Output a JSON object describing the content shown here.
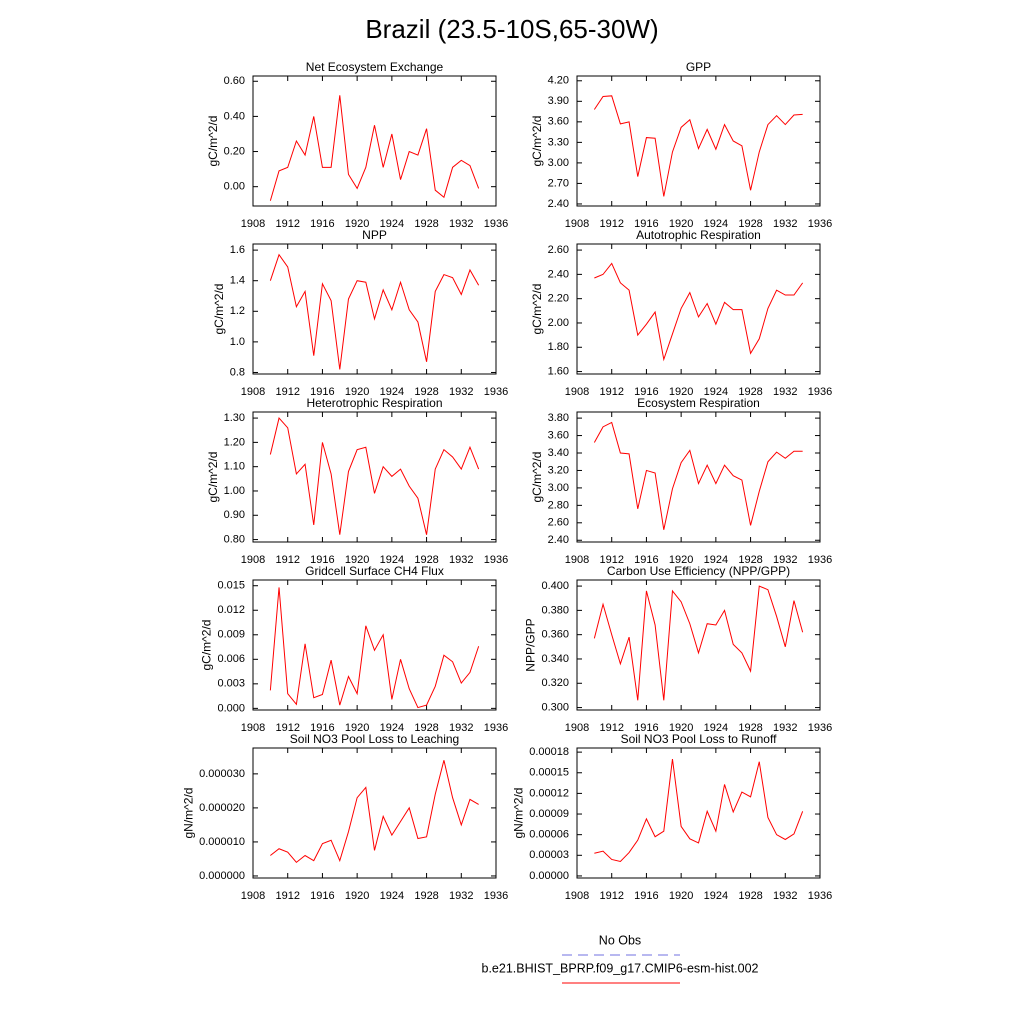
{
  "title": "Brazil (23.5-10S,65-30W)",
  "legend": [
    {
      "name": "No Obs",
      "color": "#7070e0",
      "dash": true
    },
    {
      "name": "b.e21.BHIST_BPRP.f09_g17.CMIP6-esm-hist.002",
      "color": "#ff0000",
      "dash": false
    }
  ],
  "chart_data": [
    {
      "type": "line",
      "title": "Net Ecosystem Exchange",
      "y_label": "gC/m^2/d",
      "x": [
        1910,
        1911,
        1912,
        1913,
        1914,
        1915,
        1916,
        1917,
        1918,
        1919,
        1920,
        1921,
        1922,
        1923,
        1924,
        1925,
        1926,
        1927,
        1928,
        1929,
        1930,
        1931,
        1932,
        1933,
        1934
      ],
      "xlim": [
        1908,
        1936
      ],
      "xticks": [
        1908,
        1912,
        1916,
        1920,
        1924,
        1928,
        1932,
        1936
      ],
      "ylim": [
        -0.11,
        0.63
      ],
      "yticks": [
        {
          "value": 0,
          "label": "0.00"
        },
        {
          "value": 0.2,
          "label": "0.20"
        },
        {
          "value": 0.4,
          "label": "0.40"
        },
        {
          "value": 0.6,
          "label": "0.60"
        }
      ],
      "series": [
        {
          "color": "#ff0000",
          "values": [
            -0.08,
            0.09,
            0.11,
            0.26,
            0.18,
            0.4,
            0.11,
            0.11,
            0.52,
            0.07,
            -0.01,
            0.11,
            0.35,
            0.11,
            0.3,
            0.04,
            0.2,
            0.18,
            0.33,
            -0.02,
            -0.06,
            0.11,
            0.15,
            0.12,
            -0.01
          ]
        }
      ]
    },
    {
      "type": "line",
      "title": "GPP",
      "y_label": "gC/m^2/d",
      "x": [
        1910,
        1911,
        1912,
        1913,
        1914,
        1915,
        1916,
        1917,
        1918,
        1919,
        1920,
        1921,
        1922,
        1923,
        1924,
        1925,
        1926,
        1927,
        1928,
        1929,
        1930,
        1931,
        1932,
        1933,
        1934
      ],
      "xlim": [
        1908,
        1936
      ],
      "xticks": [
        1908,
        1912,
        1916,
        1920,
        1924,
        1928,
        1932,
        1936
      ],
      "ylim": [
        2.37,
        4.27
      ],
      "yticks": [
        {
          "value": 2.4,
          "label": "2.40"
        },
        {
          "value": 2.7,
          "label": "2.70"
        },
        {
          "value": 3,
          "label": "3.00"
        },
        {
          "value": 3.3,
          "label": "3.30"
        },
        {
          "value": 3.6,
          "label": "3.60"
        },
        {
          "value": 3.9,
          "label": "3.90"
        },
        {
          "value": 4.2,
          "label": "4.20"
        }
      ],
      "series": [
        {
          "color": "#ff0000",
          "values": [
            3.78,
            3.97,
            3.98,
            3.57,
            3.6,
            2.8,
            3.37,
            3.36,
            2.51,
            3.16,
            3.52,
            3.63,
            3.21,
            3.49,
            3.2,
            3.56,
            3.32,
            3.25,
            2.6,
            3.16,
            3.56,
            3.69,
            3.56,
            3.7,
            3.71
          ]
        }
      ]
    },
    {
      "type": "line",
      "title": "NPP",
      "y_label": "gC/m^2/d",
      "x": [
        1910,
        1911,
        1912,
        1913,
        1914,
        1915,
        1916,
        1917,
        1918,
        1919,
        1920,
        1921,
        1922,
        1923,
        1924,
        1925,
        1926,
        1927,
        1928,
        1929,
        1930,
        1931,
        1932,
        1933,
        1934
      ],
      "xlim": [
        1908,
        1936
      ],
      "xticks": [
        1908,
        1912,
        1916,
        1920,
        1924,
        1928,
        1932,
        1936
      ],
      "ylim": [
        0.79,
        1.64
      ],
      "yticks": [
        0.8,
        {
          "value": 1,
          "label": "1.0"
        },
        1.2,
        1.4,
        1.6
      ],
      "series": [
        {
          "color": "#ff0000",
          "values": [
            1.4,
            1.57,
            1.49,
            1.23,
            1.33,
            0.91,
            1.38,
            1.27,
            0.82,
            1.28,
            1.4,
            1.39,
            1.15,
            1.34,
            1.21,
            1.39,
            1.21,
            1.13,
            0.87,
            1.33,
            1.44,
            1.42,
            1.31,
            1.47,
            1.37
          ]
        }
      ]
    },
    {
      "type": "line",
      "title": "Autotrophic Respiration",
      "y_label": "gC/m^2/d",
      "x": [
        1910,
        1911,
        1912,
        1913,
        1914,
        1915,
        1916,
        1917,
        1918,
        1919,
        1920,
        1921,
        1922,
        1923,
        1924,
        1925,
        1926,
        1927,
        1928,
        1929,
        1930,
        1931,
        1932,
        1933,
        1934
      ],
      "xlim": [
        1908,
        1936
      ],
      "xticks": [
        1908,
        1912,
        1916,
        1920,
        1924,
        1928,
        1932,
        1936
      ],
      "ylim": [
        1.58,
        2.65
      ],
      "yticks": [
        {
          "value": 1.6,
          "label": "1.60"
        },
        {
          "value": 1.8,
          "label": "1.80"
        },
        {
          "value": 2,
          "label": "2.00"
        },
        {
          "value": 2.2,
          "label": "2.20"
        },
        {
          "value": 2.4,
          "label": "2.40"
        },
        {
          "value": 2.6,
          "label": "2.60"
        }
      ],
      "series": [
        {
          "color": "#ff0000",
          "values": [
            2.37,
            2.4,
            2.49,
            2.33,
            2.27,
            1.9,
            1.99,
            2.09,
            1.7,
            1.91,
            2.12,
            2.25,
            2.05,
            2.16,
            1.99,
            2.17,
            2.11,
            2.11,
            1.75,
            1.87,
            2.12,
            2.27,
            2.23,
            2.23,
            2.33
          ]
        }
      ]
    },
    {
      "type": "line",
      "title": "Heterotrophic Respiration",
      "y_label": "gC/m^2/d",
      "x": [
        1910,
        1911,
        1912,
        1913,
        1914,
        1915,
        1916,
        1917,
        1918,
        1919,
        1920,
        1921,
        1922,
        1923,
        1924,
        1925,
        1926,
        1927,
        1928,
        1929,
        1930,
        1931,
        1932,
        1933,
        1934
      ],
      "xlim": [
        1908,
        1936
      ],
      "xticks": [
        1908,
        1912,
        1916,
        1920,
        1924,
        1928,
        1932,
        1936
      ],
      "ylim": [
        0.79,
        1.325
      ],
      "yticks": [
        {
          "value": 0.8,
          "label": "0.80"
        },
        {
          "value": 0.9,
          "label": "0.90"
        },
        {
          "value": 1,
          "label": "1.00"
        },
        {
          "value": 1.1,
          "label": "1.10"
        },
        {
          "value": 1.2,
          "label": "1.20"
        },
        {
          "value": 1.3,
          "label": "1.30"
        }
      ],
      "series": [
        {
          "color": "#ff0000",
          "values": [
            1.15,
            1.3,
            1.26,
            1.07,
            1.11,
            0.86,
            1.2,
            1.07,
            0.82,
            1.08,
            1.17,
            1.18,
            0.99,
            1.1,
            1.06,
            1.09,
            1.02,
            0.97,
            0.82,
            1.09,
            1.17,
            1.14,
            1.09,
            1.18,
            1.09
          ]
        }
      ]
    },
    {
      "type": "line",
      "title": "Ecosystem Respiration",
      "y_label": "gC/m^2/d",
      "x": [
        1910,
        1911,
        1912,
        1913,
        1914,
        1915,
        1916,
        1917,
        1918,
        1919,
        1920,
        1921,
        1922,
        1923,
        1924,
        1925,
        1926,
        1927,
        1928,
        1929,
        1930,
        1931,
        1932,
        1933,
        1934
      ],
      "xlim": [
        1908,
        1936
      ],
      "xticks": [
        1908,
        1912,
        1916,
        1920,
        1924,
        1928,
        1932,
        1936
      ],
      "ylim": [
        2.38,
        3.87
      ],
      "yticks": [
        {
          "value": 2.4,
          "label": "2.40"
        },
        {
          "value": 2.6,
          "label": "2.60"
        },
        {
          "value": 2.8,
          "label": "2.80"
        },
        {
          "value": 3,
          "label": "3.00"
        },
        {
          "value": 3.2,
          "label": "3.20"
        },
        {
          "value": 3.4,
          "label": "3.40"
        },
        {
          "value": 3.6,
          "label": "3.60"
        },
        {
          "value": 3.8,
          "label": "3.80"
        }
      ],
      "series": [
        {
          "color": "#ff0000",
          "values": [
            3.52,
            3.7,
            3.75,
            3.4,
            3.39,
            2.76,
            3.2,
            3.17,
            2.52,
            2.99,
            3.29,
            3.43,
            3.05,
            3.26,
            3.05,
            3.26,
            3.14,
            3.09,
            2.57,
            2.96,
            3.3,
            3.41,
            3.34,
            3.42,
            3.42
          ]
        }
      ]
    },
    {
      "type": "line",
      "title": "Gridcell Surface CH4 Flux",
      "y_label": "gC/m^2/d",
      "x": [
        1910,
        1911,
        1912,
        1913,
        1914,
        1915,
        1916,
        1917,
        1918,
        1919,
        1920,
        1921,
        1922,
        1923,
        1924,
        1925,
        1926,
        1927,
        1928,
        1929,
        1930,
        1931,
        1932,
        1933,
        1934
      ],
      "xlim": [
        1908,
        1936
      ],
      "xticks": [
        1908,
        1912,
        1916,
        1920,
        1924,
        1928,
        1932,
        1936
      ],
      "ylim": [
        -0.0002,
        0.0157
      ],
      "yticks": [
        {
          "value": 0,
          "label": "0.000"
        },
        0.003,
        0.006,
        0.009,
        0.012,
        0.015
      ],
      "series": [
        {
          "color": "#ff0000",
          "values": [
            0.0022,
            0.0148,
            0.0018,
            0.0005,
            0.0079,
            0.0013,
            0.0017,
            0.0059,
            0.0004,
            0.0039,
            0.0018,
            0.0101,
            0.0071,
            0.009,
            0.0011,
            0.006,
            0.0024,
            0.0001,
            0.0004,
            0.0027,
            0.0065,
            0.0057,
            0.0031,
            0.0044,
            0.0076
          ]
        }
      ]
    },
    {
      "type": "line",
      "title": "Carbon Use Efficiency (NPP/GPP)",
      "y_label": "NPP/GPP",
      "x": [
        1910,
        1911,
        1912,
        1913,
        1914,
        1915,
        1916,
        1917,
        1918,
        1919,
        1920,
        1921,
        1922,
        1923,
        1924,
        1925,
        1926,
        1927,
        1928,
        1929,
        1930,
        1931,
        1932,
        1933,
        1934
      ],
      "xlim": [
        1908,
        1936
      ],
      "xticks": [
        1908,
        1912,
        1916,
        1920,
        1924,
        1928,
        1932,
        1936
      ],
      "ylim": [
        0.298,
        0.405
      ],
      "yticks": [
        {
          "value": 0.3,
          "label": "0.300"
        },
        {
          "value": 0.32,
          "label": "0.320"
        },
        {
          "value": 0.34,
          "label": "0.340"
        },
        {
          "value": 0.36,
          "label": "0.360"
        },
        {
          "value": 0.38,
          "label": "0.380"
        },
        {
          "value": 0.4,
          "label": "0.400"
        }
      ],
      "series": [
        {
          "color": "#ff0000",
          "values": [
            0.357,
            0.385,
            0.36,
            0.336,
            0.358,
            0.306,
            0.396,
            0.368,
            0.306,
            0.396,
            0.387,
            0.369,
            0.345,
            0.369,
            0.368,
            0.38,
            0.352,
            0.345,
            0.33,
            0.4,
            0.397,
            0.375,
            0.35,
            0.388,
            0.362
          ]
        }
      ]
    },
    {
      "type": "line",
      "title": "Soil NO3 Pool Loss to Leaching",
      "y_label": "gN/m^2/d",
      "x": [
        1910,
        1911,
        1912,
        1913,
        1914,
        1915,
        1916,
        1917,
        1918,
        1919,
        1920,
        1921,
        1922,
        1923,
        1924,
        1925,
        1926,
        1927,
        1928,
        1929,
        1930,
        1931,
        1932,
        1933,
        1934
      ],
      "xlim": [
        1908,
        1936
      ],
      "xticks": [
        1908,
        1912,
        1916,
        1920,
        1924,
        1928,
        1932,
        1936
      ],
      "ylim": [
        -6e-07,
        3.76e-05
      ],
      "yticks": [
        {
          "value": 0,
          "label": "0.000000"
        },
        {
          "value": 1e-05,
          "label": "0.000010"
        },
        {
          "value": 2e-05,
          "label": "0.000020"
        },
        {
          "value": 3e-05,
          "label": "0.000030"
        }
      ],
      "series": [
        {
          "color": "#ff0000",
          "values": [
            6e-06,
            8e-06,
            7e-06,
            4e-06,
            6e-06,
            4.5e-06,
            9.5e-06,
            1.05e-05,
            4.5e-06,
            1.3e-05,
            2.3e-05,
            2.6e-05,
            7.5e-06,
            1.75e-05,
            1.2e-05,
            1.6e-05,
            2e-05,
            1.1e-05,
            1.15e-05,
            2.4e-05,
            3.4e-05,
            2.3e-05,
            1.5e-05,
            2.25e-05,
            2.1e-05
          ]
        }
      ]
    },
    {
      "type": "line",
      "title": "Soil NO3 Pool Loss to Runoff",
      "y_label": "gN/m^2/d",
      "x": [
        1910,
        1911,
        1912,
        1913,
        1914,
        1915,
        1916,
        1917,
        1918,
        1919,
        1920,
        1921,
        1922,
        1923,
        1924,
        1925,
        1926,
        1927,
        1928,
        1929,
        1930,
        1931,
        1932,
        1933,
        1934
      ],
      "xlim": [
        1908,
        1936
      ],
      "xticks": [
        1908,
        1912,
        1916,
        1920,
        1924,
        1928,
        1932,
        1936
      ],
      "ylim": [
        -3e-06,
        0.000186
      ],
      "yticks": [
        {
          "value": 0,
          "label": "0.00000"
        },
        {
          "value": 3e-05,
          "label": "0.00003"
        },
        {
          "value": 6e-05,
          "label": "0.00006"
        },
        {
          "value": 9e-05,
          "label": "0.00009"
        },
        {
          "value": 0.00012,
          "label": "0.00012"
        },
        {
          "value": 0.00015,
          "label": "0.00015"
        },
        {
          "value": 0.00018,
          "label": "0.00018"
        }
      ],
      "series": [
        {
          "color": "#ff0000",
          "values": [
            3.3e-05,
            3.6e-05,
            2.4e-05,
            2.1e-05,
            3.4e-05,
            5.2e-05,
            8.3e-05,
            5.7e-05,
            6.5e-05,
            0.00017,
            7.2e-05,
            5.4e-05,
            4.8e-05,
            9.4e-05,
            6.5e-05,
            0.000133,
            9.3e-05,
            0.000122,
            0.000115,
            0.000166,
            8.5e-05,
            6e-05,
            5.3e-05,
            6.1e-05,
            9.4e-05
          ]
        }
      ]
    }
  ]
}
